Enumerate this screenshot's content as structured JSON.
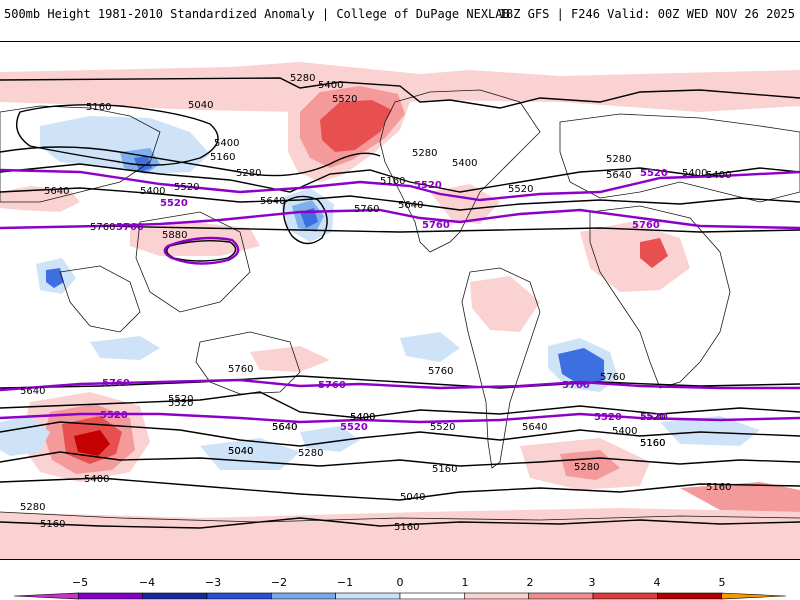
{
  "header": {
    "title_left": "500mb Height 1981-2010 Standardized Anomaly | College of DuPage NEXLAB",
    "title_right": "18Z GFS | F246 Valid: 00Z WED NOV 26 2025"
  },
  "colors": {
    "contour_black": "#000000",
    "contour_purple": "#8c00c8",
    "coast": "#1a1a1a",
    "anomaly_neg_1": "#cfe3f8",
    "anomaly_neg_2": "#7fb0ec",
    "anomaly_neg_3": "#3d6fe0",
    "anomaly_neg_4": "#1535b0",
    "anomaly_pos_1": "#fbd2d2",
    "anomaly_pos_2": "#f49a9a",
    "anomaly_pos_3": "#e85050",
    "anomaly_pos_4": "#c40000"
  },
  "contour_labels": {
    "black": [
      "5280",
      "5400",
      "5520",
      "5160",
      "5040",
      "5400",
      "5160",
      "5280",
      "5640",
      "5400",
      "5520",
      "5280",
      "5400",
      "5520",
      "5280",
      "5640",
      "5640",
      "5400",
      "5160",
      "5400",
      "5640",
      "5760",
      "5880",
      "5760",
      "5640",
      "5520",
      "5400",
      "5520",
      "5640",
      "5160",
      "5040",
      "5280",
      "5400",
      "5640",
      "5760",
      "5520",
      "5400",
      "5040",
      "5280",
      "5160",
      "5520",
      "5640",
      "5400",
      "5160",
      "5280",
      "5160",
      "5040",
      "5160",
      "5160",
      "5760",
      "5760"
    ],
    "purple": [
      "5520",
      "5520",
      "5760",
      "5760",
      "5760",
      "5760",
      "5520",
      "5760",
      "5520",
      "5760",
      "5520",
      "5520",
      "5520"
    ]
  },
  "colorbar": {
    "ticks": [
      "−5",
      "−4",
      "−3",
      "−2",
      "−1",
      "0",
      "1",
      "2",
      "3",
      "4",
      "5"
    ],
    "colors": [
      "#c832c8",
      "#8200c8",
      "#1428a0",
      "#2850d2",
      "#78aaf0",
      "#c8e1fa",
      "#ffffff",
      "#fad2d2",
      "#f08c8c",
      "#dc3c3c",
      "#b40000",
      "#f59b00"
    ]
  }
}
